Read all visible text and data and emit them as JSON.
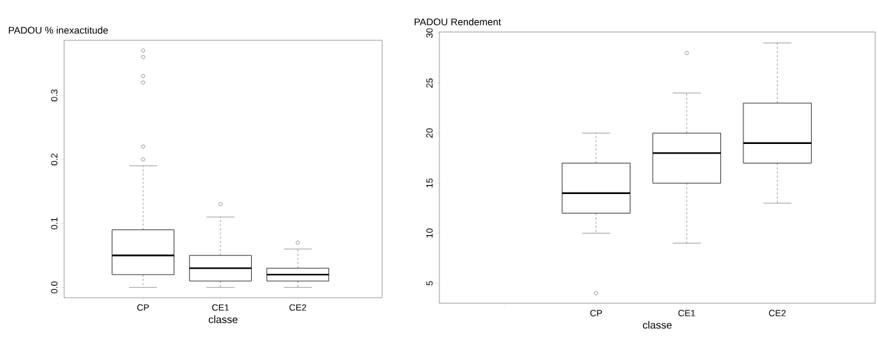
{
  "chart_data": [
    {
      "type": "box",
      "title": "PADOU % inexactitude",
      "xlabel": "classe",
      "categories": [
        "CP",
        "CE1",
        "CE2"
      ],
      "boxes": [
        {
          "low": 0,
          "q1": 0.02,
          "median": 0.05,
          "q3": 0.09,
          "high": 0.19,
          "outliers": [
            0.2,
            0.22,
            0.32,
            0.33,
            0.36,
            0.37
          ]
        },
        {
          "low": 0,
          "q1": 0.01,
          "median": 0.03,
          "q3": 0.05,
          "high": 0.11,
          "outliers": [
            0.13
          ]
        },
        {
          "low": 0,
          "q1": 0.01,
          "median": 0.02,
          "q3": 0.03,
          "high": 0.06,
          "outliers": [
            0.07
          ]
        }
      ],
      "ylim": [
        -0.016,
        0.386
      ],
      "yticks": [
        {
          "value": 0,
          "label": "0.0"
        },
        0.1,
        0.2,
        0.3
      ]
    },
    {
      "type": "box",
      "title": "PADOU Rendement",
      "xlabel": "classe",
      "categories": [
        null,
        "CP",
        "CE1",
        "CE2"
      ],
      "boxes": [
        null,
        {
          "low": 10,
          "q1": 12,
          "median": 14,
          "q3": 17,
          "high": 20,
          "outliers": [
            4
          ]
        },
        {
          "low": 9,
          "q1": 15,
          "median": 18,
          "q3": 20,
          "high": 24,
          "outliers": [
            28
          ]
        },
        {
          "low": 13,
          "q1": 17,
          "median": 19,
          "q3": 23,
          "high": 29
        }
      ],
      "ylim": [
        3,
        30.1
      ],
      "yticks": [
        5,
        10,
        15,
        20,
        25,
        30
      ]
    }
  ]
}
